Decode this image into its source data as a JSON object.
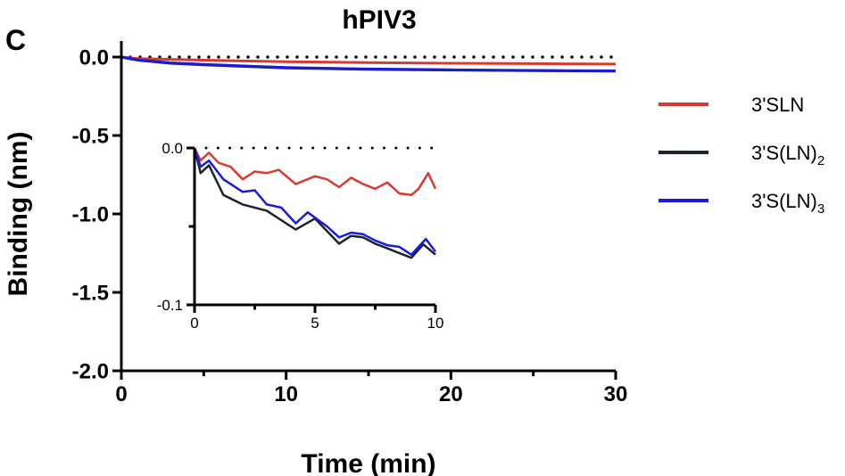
{
  "panel_label": "C",
  "chart_data": {
    "type": "line",
    "title": "hPIV3",
    "xlabel": "Time (min)",
    "ylabel": "Binding (nm)",
    "xlim": [
      0,
      30
    ],
    "ylim": [
      -2.0,
      0.0
    ],
    "xticks": [
      "0",
      "10",
      "20",
      "30"
    ],
    "yticks": [
      "0.0",
      "-0.5",
      "-1.0",
      "-1.5",
      "-2.0"
    ],
    "baseline": 0,
    "legend_position": "right",
    "series": [
      {
        "name": "3'SLN",
        "name_base": "3'SLN",
        "name_sub": "",
        "color": "#d93a30",
        "x": [
          0,
          1,
          3,
          5,
          10,
          15,
          20,
          25,
          30
        ],
        "y": [
          0,
          -0.01,
          -0.015,
          -0.02,
          -0.03,
          -0.035,
          -0.04,
          -0.042,
          -0.045
        ]
      },
      {
        "name": "3'S(LN)2",
        "name_base": "3'S(LN)",
        "name_sub": "2",
        "color": "#1c2230",
        "x": [
          0,
          1,
          3,
          5,
          10,
          15,
          20,
          25,
          30
        ],
        "y": [
          0,
          -0.02,
          -0.04,
          -0.05,
          -0.07,
          -0.078,
          -0.083,
          -0.087,
          -0.09
        ]
      },
      {
        "name": "3'S(LN)3",
        "name_base": "3'S(LN)",
        "name_sub": "3",
        "color": "#1a1adb",
        "x": [
          0,
          1,
          3,
          5,
          10,
          15,
          20,
          25,
          30
        ],
        "y": [
          0,
          -0.018,
          -0.037,
          -0.047,
          -0.067,
          -0.076,
          -0.081,
          -0.085,
          -0.088
        ]
      }
    ],
    "inset": {
      "xlim": [
        0,
        10
      ],
      "ylim": [
        -0.1,
        0.0
      ],
      "xticks": [
        "0",
        "5",
        "10"
      ],
      "yticks": [
        "0.0",
        "-0.1"
      ],
      "series": [
        {
          "name": "3'SLN",
          "color": "#d93a30",
          "x": [
            0,
            0.25,
            0.6,
            1,
            1.5,
            2,
            2.5,
            3,
            3.5,
            4.2,
            5,
            5.5,
            6,
            6.5,
            7,
            7.5,
            8,
            8.5,
            9,
            9.3,
            9.7,
            10
          ],
          "y": [
            0,
            -0.008,
            -0.003,
            -0.0095,
            -0.012,
            -0.02,
            -0.015,
            -0.016,
            -0.014,
            -0.023,
            -0.018,
            -0.02,
            -0.025,
            -0.019,
            -0.023,
            -0.026,
            -0.022,
            -0.029,
            -0.03,
            -0.026,
            -0.016,
            -0.026
          ]
        },
        {
          "name": "3'S(LN)2",
          "color": "#1c2230",
          "x": [
            0,
            0.25,
            0.6,
            1.2,
            2,
            3,
            3.6,
            4.2,
            5,
            5.5,
            6,
            6.5,
            7,
            7.5,
            8,
            8.5,
            9,
            9.5,
            10
          ],
          "y": [
            0,
            -0.016,
            -0.011,
            -0.03,
            -0.036,
            -0.04,
            -0.046,
            -0.052,
            -0.045,
            -0.053,
            -0.061,
            -0.056,
            -0.057,
            -0.061,
            -0.064,
            -0.067,
            -0.07,
            -0.0615,
            -0.068
          ]
        },
        {
          "name": "3'S(LN)3",
          "color": "#1a1adb",
          "x": [
            0,
            0.25,
            0.6,
            1.2,
            2,
            2.5,
            3,
            3.6,
            4.2,
            4.7,
            5.5,
            6,
            6.5,
            7,
            7.5,
            8,
            8.5,
            9,
            9.6,
            10
          ],
          "y": [
            0,
            -0.012,
            -0.008,
            -0.02,
            -0.028,
            -0.027,
            -0.036,
            -0.038,
            -0.048,
            -0.041,
            -0.05,
            -0.057,
            -0.054,
            -0.055,
            -0.059,
            -0.062,
            -0.063,
            -0.068,
            -0.058,
            -0.066
          ]
        }
      ]
    }
  }
}
